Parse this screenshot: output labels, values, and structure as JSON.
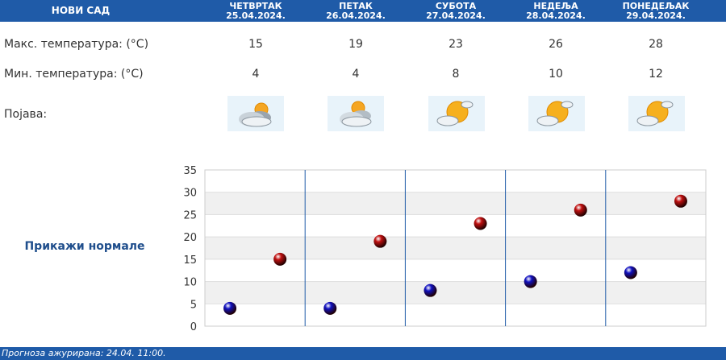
{
  "header": {
    "city": "НОВИ САД",
    "days": [
      {
        "name": "ЧЕТВРТАК",
        "date": "25.04.2024."
      },
      {
        "name": "ПЕТАК",
        "date": "26.04.2024."
      },
      {
        "name": "СУБОТА",
        "date": "27.04.2024."
      },
      {
        "name": "НЕДЕЉА",
        "date": "28.04.2024."
      },
      {
        "name": "ПОНЕДЕЉАК",
        "date": "29.04.2024."
      }
    ]
  },
  "rows": {
    "max_label": "Макс. температура: (°C)",
    "min_label": "Мин. температура: (°C)",
    "phenomenon_label": "Појава:",
    "max_values": [
      "15",
      "19",
      "23",
      "26",
      "28"
    ],
    "min_values": [
      "4",
      "4",
      "8",
      "10",
      "12"
    ],
    "icons": [
      "cloudy-sun-icon",
      "partly-cloudy-icon",
      "sunny-cloud-icon",
      "sunny-cloud-icon",
      "sunny-cloud-icon"
    ]
  },
  "chart_title": "Прикажи нормале",
  "chart_data": {
    "type": "scatter",
    "categories": [
      "ЧЕТВРТАК",
      "ПЕТАК",
      "СУБОТА",
      "НЕДЕЉА",
      "ПОНЕДЕЉАК"
    ],
    "series": [
      {
        "values": [
          4,
          4,
          8,
          10,
          12
        ],
        "color": "#1010c0"
      },
      {
        "values": [
          15,
          19,
          23,
          26,
          28
        ],
        "color": "#c01010"
      }
    ],
    "ylim": [
      0,
      35
    ],
    "yticks": [
      "0",
      "5",
      "10",
      "15",
      "20",
      "25",
      "30",
      "35"
    ],
    "grid": true
  },
  "footer": "Прогноза ажурирана:  24.04.  11:00."
}
